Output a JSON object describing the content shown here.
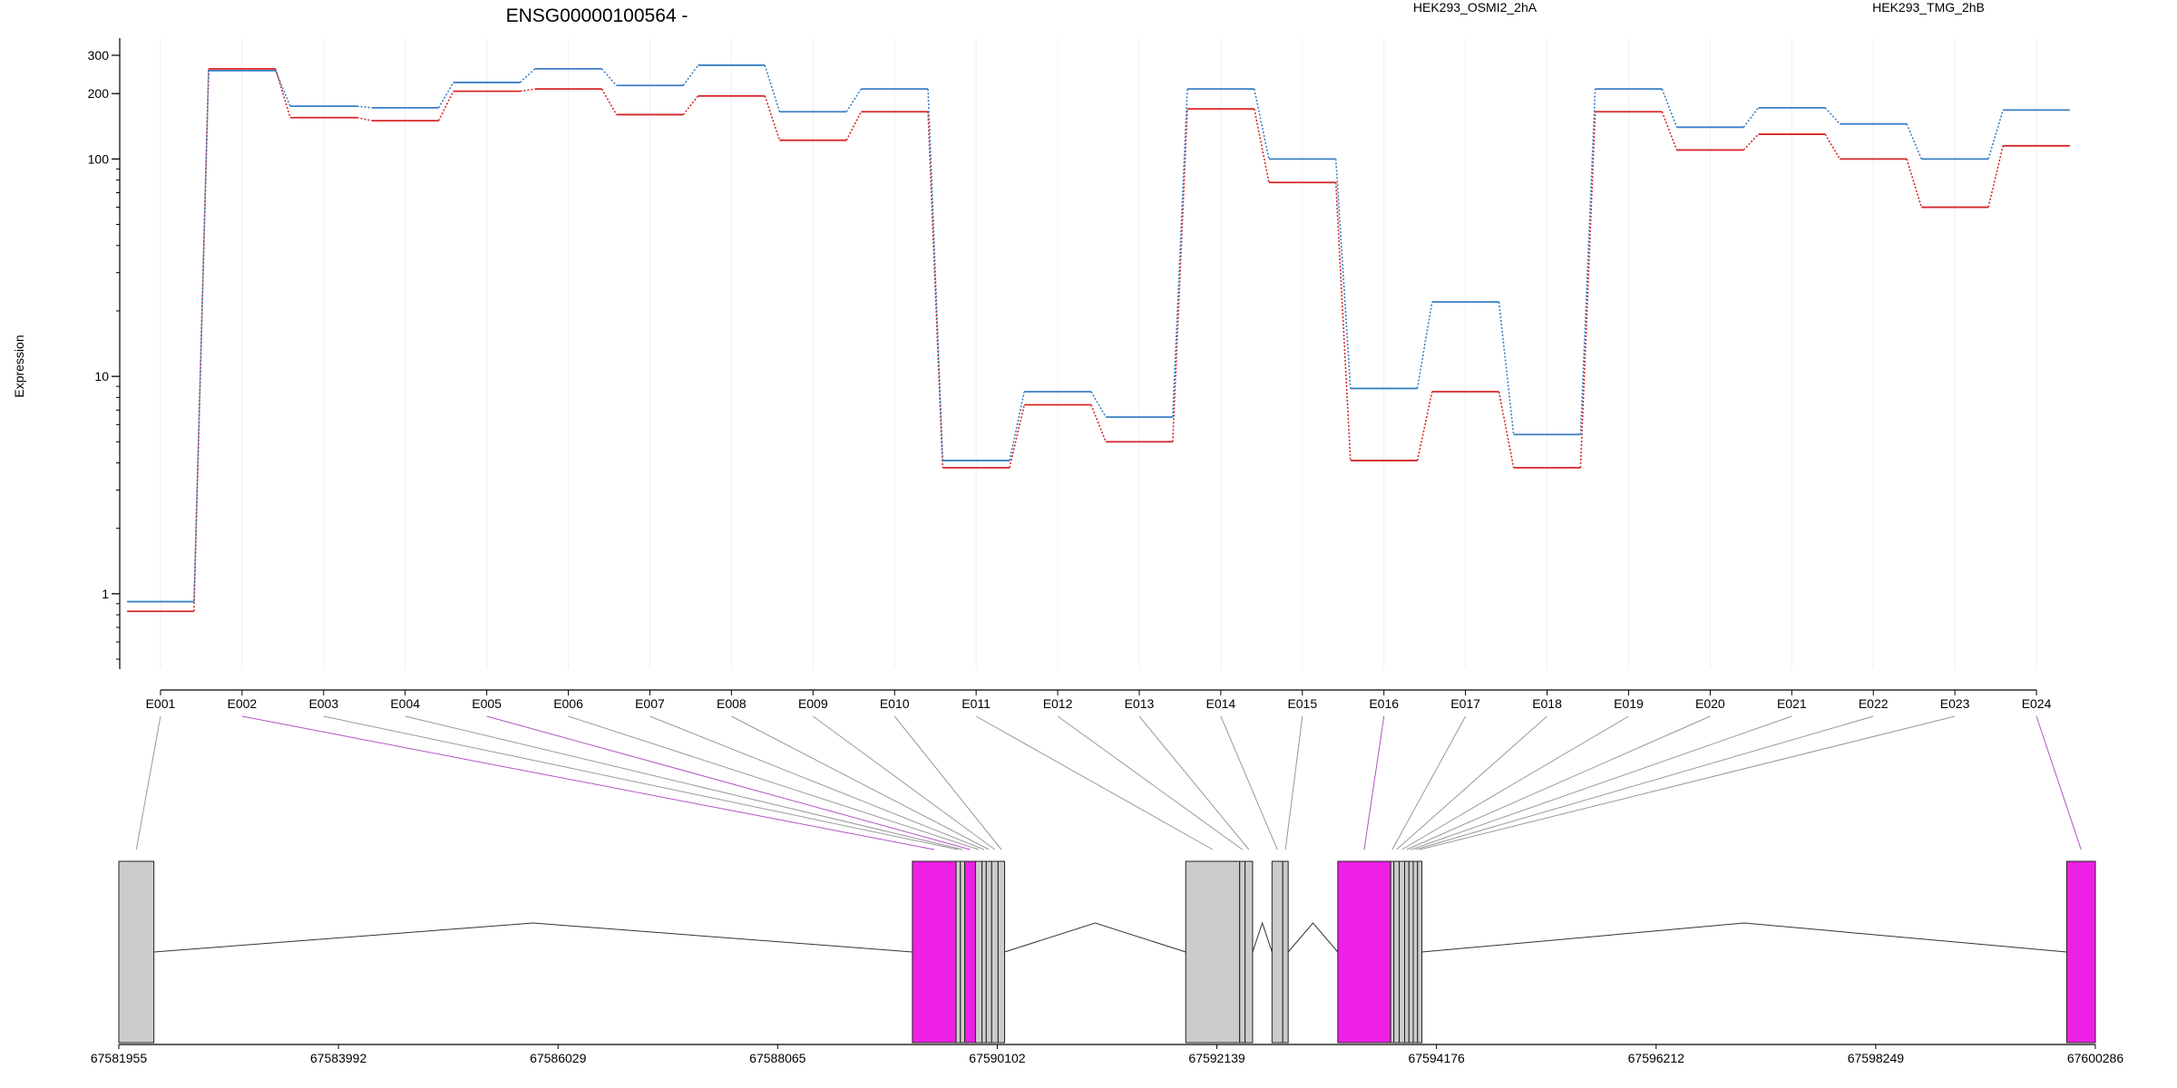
{
  "chart_data": {
    "type": "line",
    "title": "ENSG00000100564 -",
    "ylabel": "Expression",
    "y_scale": "log",
    "ylim": [
      0.45,
      360
    ],
    "y_ticks": [
      1,
      10,
      100,
      200,
      300
    ],
    "y_tick_labels": [
      "1",
      "10",
      "100",
      "200",
      "300"
    ],
    "grid": "vertical",
    "legend_position": "top-right",
    "categories": [
      "E001",
      "E002",
      "E003",
      "E004",
      "E005",
      "E006",
      "E007",
      "E008",
      "E009",
      "E010",
      "E011",
      "E012",
      "E013",
      "E014",
      "E015",
      "E016",
      "E017",
      "E018",
      "E019",
      "E020",
      "E021",
      "E022",
      "E023",
      "E024"
    ],
    "series": [
      {
        "name": "HEK293_OSMI2_2hA",
        "color": "#d62728",
        "values": [
          0.83,
          260,
          155,
          150,
          205,
          210,
          160,
          195,
          122,
          165,
          3.8,
          7.4,
          5.0,
          170,
          78,
          4.1,
          8.5,
          3.8,
          165,
          110,
          130,
          100,
          60,
          115
        ]
      },
      {
        "name": "HEK293_TMG_2hB",
        "color": "#3a7fc4",
        "values": [
          0.92,
          255,
          175,
          172,
          225,
          260,
          218,
          270,
          165,
          210,
          4.1,
          8.5,
          6.5,
          210,
          100,
          8.8,
          22,
          5.4,
          210,
          140,
          172,
          145,
          100,
          168
        ]
      }
    ],
    "highlight_color": "#ee20e6",
    "exon_color": "#cccccc",
    "genomic_axis": {
      "range": [
        67581955,
        67600286
      ],
      "tick_labels": [
        "67581955",
        "67583992",
        "67586029",
        "67588065",
        "67590102",
        "67592139",
        "67594176",
        "67596212",
        "67598249",
        "67600286"
      ]
    },
    "exons": [
      {
        "id": "E001",
        "start": 67581955,
        "end": 67582280,
        "highlight": false
      },
      {
        "id": "E002",
        "start": 67589315,
        "end": 67589720,
        "highlight": true
      },
      {
        "id": "E003",
        "start": 67589720,
        "end": 67589760,
        "highlight": false
      },
      {
        "id": "E004",
        "start": 67589760,
        "end": 67589800,
        "highlight": false
      },
      {
        "id": "E005",
        "start": 67589800,
        "end": 67589900,
        "highlight": true
      },
      {
        "id": "E006",
        "start": 67589900,
        "end": 67589960,
        "highlight": false
      },
      {
        "id": "E007",
        "start": 67589960,
        "end": 67590000,
        "highlight": false
      },
      {
        "id": "E008",
        "start": 67590000,
        "end": 67590050,
        "highlight": false
      },
      {
        "id": "E009",
        "start": 67590050,
        "end": 67590110,
        "highlight": false
      },
      {
        "id": "E010",
        "start": 67590110,
        "end": 67590170,
        "highlight": false
      },
      {
        "id": "E011",
        "start": 67591850,
        "end": 67592350,
        "highlight": false
      },
      {
        "id": "E012",
        "start": 67592350,
        "end": 67592400,
        "highlight": false
      },
      {
        "id": "E013",
        "start": 67592400,
        "end": 67592470,
        "highlight": false
      },
      {
        "id": "E014",
        "start": 67592650,
        "end": 67592750,
        "highlight": false
      },
      {
        "id": "E015",
        "start": 67592750,
        "end": 67592800,
        "highlight": false
      },
      {
        "id": "E016",
        "start": 67593260,
        "end": 67593750,
        "highlight": true
      },
      {
        "id": "E017",
        "start": 67593750,
        "end": 67593780,
        "highlight": false
      },
      {
        "id": "E018",
        "start": 67593780,
        "end": 67593830,
        "highlight": false
      },
      {
        "id": "E019",
        "start": 67593830,
        "end": 67593880,
        "highlight": false
      },
      {
        "id": "E020",
        "start": 67593880,
        "end": 67593920,
        "highlight": false
      },
      {
        "id": "E021",
        "start": 67593920,
        "end": 67593960,
        "highlight": false
      },
      {
        "id": "E022",
        "start": 67593960,
        "end": 67594000,
        "highlight": false
      },
      {
        "id": "E023",
        "start": 67594000,
        "end": 67594040,
        "highlight": false
      },
      {
        "id": "E024",
        "start": 67600020,
        "end": 67600286,
        "highlight": true
      }
    ]
  }
}
